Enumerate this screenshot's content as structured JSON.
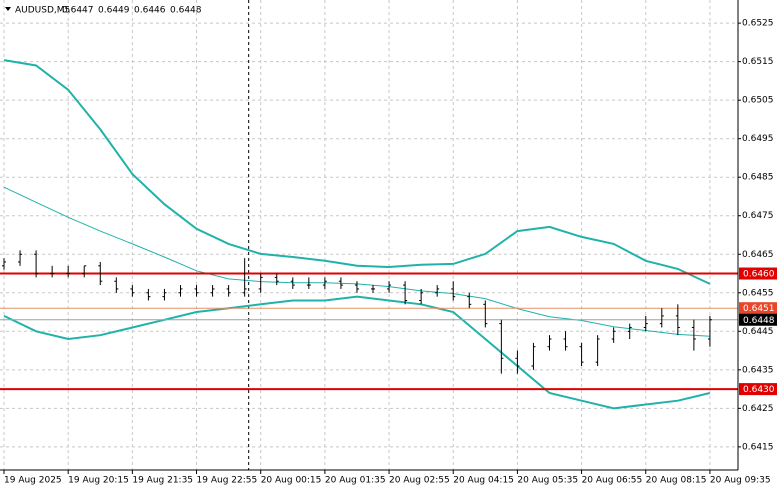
{
  "chart_data": {
    "type": "candlestick",
    "header": {
      "symbol": "AUDUSD,M5",
      "values": [
        0.6447,
        0.6449,
        0.6446,
        0.6448
      ]
    },
    "xlim": [
      0,
      184
    ],
    "xticks": [
      {
        "value": 1,
        "label": "19 Aug 2025"
      },
      {
        "value": 17,
        "label": "19 Aug 20:15"
      },
      {
        "value": 33,
        "label": "19 Aug 21:35"
      },
      {
        "value": 49,
        "label": "19 Aug 22:55"
      },
      {
        "value": 65,
        "label": "20 Aug 00:15"
      },
      {
        "value": 81,
        "label": "20 Aug 01:35"
      },
      {
        "value": 97,
        "label": "20 Aug 02:55"
      },
      {
        "value": 113,
        "label": "20 Aug 04:15"
      },
      {
        "value": 129,
        "label": "20 Aug 05:35"
      },
      {
        "value": 145,
        "label": "20 Aug 06:55"
      },
      {
        "value": 161,
        "label": "20 Aug 08:15"
      },
      {
        "value": 177,
        "label": "20 Aug 09:35"
      }
    ],
    "ylim": [
      0.6409,
      0.6531
    ],
    "yticks": [
      0.6525,
      0.6515,
      0.6505,
      0.6495,
      0.6485,
      0.6475,
      0.6465,
      0.6455,
      0.6445,
      0.6435,
      0.6425,
      0.6415
    ],
    "grid": true,
    "candle_color": "#000000",
    "x": [
      1,
      5,
      9,
      13,
      17,
      21,
      25,
      29,
      33,
      37,
      41,
      45,
      49,
      53,
      57,
      61,
      65,
      69,
      73,
      77,
      81,
      85,
      89,
      93,
      97,
      101,
      105,
      109,
      113,
      117,
      121,
      125,
      129,
      133,
      137,
      141,
      145,
      149,
      153,
      157,
      161,
      165,
      169,
      173,
      177
    ],
    "open": [
      0.6462,
      0.6463,
      0.6465,
      0.646,
      0.646,
      0.646,
      0.6462,
      0.6458,
      0.6456,
      0.6455,
      0.6454,
      0.6455,
      0.6456,
      0.6455,
      0.6456,
      0.6455,
      0.6456,
      0.6459,
      0.6458,
      0.6457,
      0.6457,
      0.6458,
      0.6457,
      0.6456,
      0.6456,
      0.6457,
      0.6453,
      0.6455,
      0.6456,
      0.6454,
      0.6452,
      0.6447,
      0.6438,
      0.6436,
      0.6441,
      0.6443,
      0.6441,
      0.6437,
      0.6443,
      0.6445,
      0.6446,
      0.6447,
      0.6449,
      0.6446,
      0.6443
    ],
    "high": [
      0.6464,
      0.6466,
      0.6466,
      0.6462,
      0.6462,
      0.6462,
      0.6463,
      0.6459,
      0.6457,
      0.6456,
      0.6456,
      0.6457,
      0.6457,
      0.6457,
      0.6457,
      0.6464,
      0.646,
      0.646,
      0.6459,
      0.6459,
      0.6459,
      0.6459,
      0.6458,
      0.6457,
      0.6458,
      0.6458,
      0.6456,
      0.6457,
      0.6458,
      0.6455,
      0.6453,
      0.6448,
      0.644,
      0.6442,
      0.6444,
      0.6445,
      0.6442,
      0.6444,
      0.6446,
      0.6447,
      0.6449,
      0.6451,
      0.6452,
      0.6448,
      0.6449
    ],
    "low": [
      0.6461,
      0.6462,
      0.6459,
      0.6459,
      0.6459,
      0.6459,
      0.6457,
      0.6455,
      0.6454,
      0.6453,
      0.6453,
      0.6454,
      0.6454,
      0.6454,
      0.6454,
      0.6454,
      0.6455,
      0.6457,
      0.6456,
      0.6456,
      0.6456,
      0.6456,
      0.6455,
      0.6455,
      0.6455,
      0.6452,
      0.6452,
      0.6454,
      0.6453,
      0.6451,
      0.6446,
      0.6434,
      0.6434,
      0.6435,
      0.644,
      0.644,
      0.6436,
      0.6436,
      0.6442,
      0.6443,
      0.6445,
      0.6446,
      0.6444,
      0.644,
      0.6441
    ],
    "close": [
      0.6463,
      0.6465,
      0.646,
      0.646,
      0.646,
      0.6462,
      0.6458,
      0.6456,
      0.6455,
      0.6454,
      0.6455,
      0.6456,
      0.6455,
      0.6456,
      0.6455,
      0.6456,
      0.6459,
      0.6458,
      0.6457,
      0.6457,
      0.6458,
      0.6457,
      0.6456,
      0.6456,
      0.6457,
      0.6453,
      0.6455,
      0.6456,
      0.6454,
      0.6452,
      0.6447,
      0.6438,
      0.6436,
      0.6441,
      0.6443,
      0.6441,
      0.6437,
      0.6443,
      0.6445,
      0.6446,
      0.6447,
      0.6449,
      0.6446,
      0.6443,
      0.6448
    ],
    "bands": {
      "x": [
        1,
        9,
        17,
        25,
        33,
        41,
        49,
        57,
        65,
        73,
        81,
        89,
        97,
        105,
        113,
        121,
        129,
        137,
        145,
        153,
        161,
        169,
        177
      ],
      "series": [
        {
          "name": "upper",
          "color": "#20b2aa",
          "width": 2,
          "values": [
            0.65154,
            0.6514,
            0.65077,
            0.64974,
            0.64858,
            0.6478,
            0.64716,
            0.64677,
            0.64651,
            0.64643,
            0.64633,
            0.6462,
            0.64617,
            0.64623,
            0.64625,
            0.64651,
            0.6471,
            0.64721,
            0.64695,
            0.64677,
            0.64633,
            0.64612,
            0.64573
          ]
        },
        {
          "name": "middle",
          "color": "#20b2aa",
          "width": 1,
          "values": [
            0.64824,
            0.64785,
            0.64746,
            0.6471,
            0.64677,
            0.64643,
            0.64607,
            0.64586,
            0.64579,
            0.64576,
            0.64576,
            0.64573,
            0.64566,
            0.64555,
            0.64548,
            0.64535,
            0.64509,
            0.64488,
            0.64478,
            0.64462,
            0.64452,
            0.64442,
            0.64437
          ]
        },
        {
          "name": "lower",
          "color": "#20b2aa",
          "width": 2,
          "values": [
            0.6449,
            0.6445,
            0.6443,
            0.6444,
            0.6446,
            0.6448,
            0.645,
            0.6451,
            0.6452,
            0.6453,
            0.6453,
            0.6454,
            0.6453,
            0.6452,
            0.645,
            0.6443,
            0.6436,
            0.6429,
            0.6427,
            0.6425,
            0.6426,
            0.6427,
            0.6429
          ]
        }
      ]
    },
    "vline": 62,
    "levels": [
      {
        "value": 0.646,
        "label": "0.6460",
        "color": "#e00000",
        "label_bg": "#e00000",
        "label_color": "#ffffff",
        "width": 2
      },
      {
        "value": 0.643,
        "label": "0.6430",
        "color": "#e00000",
        "label_bg": "#e00000",
        "label_color": "#ffffff",
        "width": 2
      },
      {
        "value": 0.6451,
        "color": "#e8906a",
        "label_bg": "#e8462a",
        "label_color": "#ffffff",
        "width": 1
      },
      {
        "value": 0.6448,
        "color": "#a0a0a0",
        "label_bg": "#000000",
        "label_color": "#ffffff",
        "width": 1
      }
    ]
  }
}
